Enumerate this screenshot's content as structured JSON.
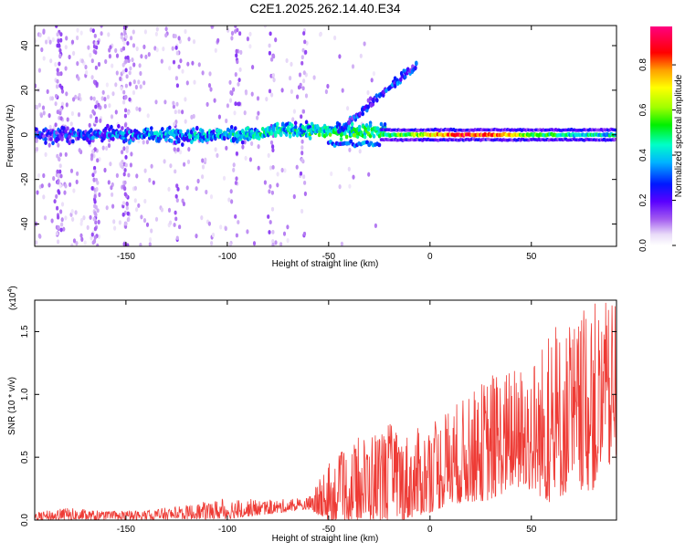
{
  "title": "C2E1.2025.262.14.40.E34",
  "colors": {
    "line": "#ee3b35",
    "axis": "#000000",
    "background": "#ffffff"
  },
  "chart_data": [
    {
      "type": "heatmap",
      "title": "C2E1.2025.262.14.40.E34",
      "xlabel": "Height of straight line (km)",
      "ylabel": "Frequency (Hz)",
      "xlim": [
        -195,
        92
      ],
      "ylim": [
        -50,
        49
      ],
      "xticks": [
        -150,
        -100,
        -50,
        0,
        50
      ],
      "yticks": [
        -40,
        -20,
        0,
        20,
        40
      ],
      "colorbar": {
        "label": "Normalized spectral amplitude",
        "range": [
          0.0,
          0.97
        ],
        "ticks": [
          0.0,
          0.2,
          0.4,
          0.6,
          0.8
        ],
        "tick_labels": [
          "0.0",
          "0.2",
          "0.4",
          "0.6",
          "0.8"
        ],
        "colormap": "white-purple-blue-cyan-green-yellow-red-magenta"
      },
      "bands": [
        {
          "name": "lower-altitude broad band",
          "x_range": [
            -195,
            -25
          ],
          "center_hz": 0,
          "half_width_hz": 6,
          "peak_amplitude": 0.55
        },
        {
          "name": "rising branch",
          "x_range": [
            -45,
            -8
          ],
          "center_hz_start": 2,
          "center_hz_end": 32,
          "peak_amplitude": 0.4
        },
        {
          "name": "upper-altitude narrow line",
          "x_range": [
            -25,
            92
          ],
          "center_hz": 0,
          "half_width_hz": 2,
          "peak_amplitude": 0.97
        }
      ]
    },
    {
      "type": "line",
      "xlabel": "Height of straight line (km)",
      "ylabel": "SNR (10 * v/v)",
      "scale_label": "(x10",
      "scale_exponent": "4",
      "xlim": [
        -195,
        92
      ],
      "ylim": [
        0,
        1.75
      ],
      "xticks": [
        -150,
        -100,
        -50,
        0,
        50
      ],
      "yticks": [
        0.0,
        0.5,
        1.0,
        1.5
      ],
      "ytick_labels": [
        "0.0",
        "0.5",
        "1.0",
        "1.5"
      ],
      "series": [
        {
          "name": "SNR",
          "x": [
            -195,
            -180,
            -160,
            -140,
            -120,
            -100,
            -80,
            -60,
            -50,
            -40,
            -30,
            -20,
            -10,
            0,
            10,
            20,
            30,
            40,
            50,
            60,
            70,
            80,
            90
          ],
          "mean": [
            0.03,
            0.04,
            0.03,
            0.04,
            0.06,
            0.09,
            0.1,
            0.13,
            0.2,
            0.25,
            0.3,
            0.3,
            0.34,
            0.4,
            0.5,
            0.55,
            0.65,
            0.7,
            0.74,
            0.8,
            0.88,
            0.95,
            1.05
          ],
          "peak": [
            0.06,
            0.1,
            0.07,
            0.08,
            0.12,
            0.18,
            0.16,
            0.18,
            0.45,
            0.6,
            0.72,
            0.78,
            0.7,
            0.78,
            0.92,
            1.0,
            1.2,
            1.2,
            1.3,
            1.55,
            1.58,
            1.75,
            1.72
          ]
        }
      ]
    }
  ]
}
